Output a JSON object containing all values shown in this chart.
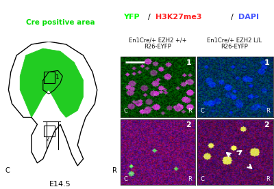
{
  "title_label": "Cre positive area",
  "title_color": "#00dd00",
  "legend_yfp_color": "#00ff00",
  "legend_h3k27_color": "#ff2222",
  "legend_dapi_color": "#4455ff",
  "col1_label": "En1Cre/+ EZH2 +/+\nR26-EYFP",
  "col2_label": "En1Cre/+ EZH2 L/L\nR26-EYFP",
  "label_color": "#111111",
  "embryo_label": "E14.5",
  "bg_color": "#ffffff"
}
